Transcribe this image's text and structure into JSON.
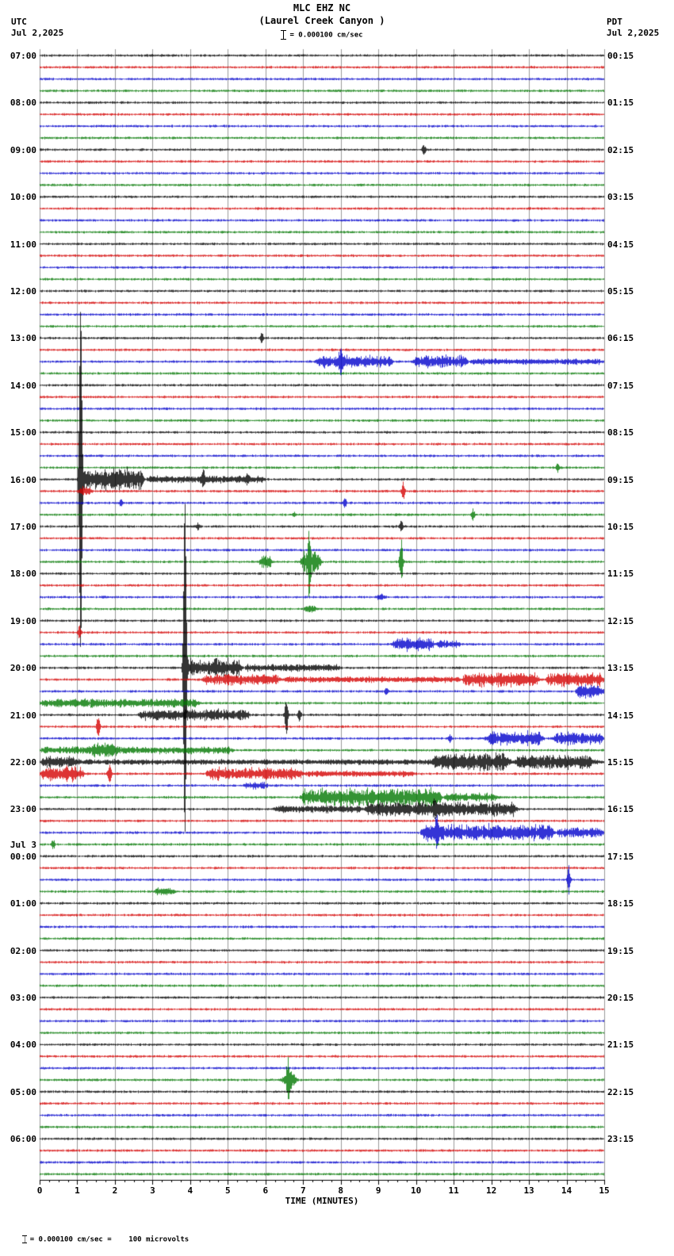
{
  "header": {
    "title": "MLC EHZ NC",
    "subtitle": "(Laurel Creek Canyon )",
    "scale_text": "= 0.000100 cm/sec",
    "left_tz": "UTC",
    "left_date": "Jul 2,2025",
    "right_tz": "PDT",
    "right_date": "Jul 2,2025"
  },
  "footer": {
    "xlabel": "TIME (MINUTES)",
    "note": "= 0.000100 cm/sec =    100 microvolts"
  },
  "chart_data": {
    "type": "line",
    "description": "24-hour helicorder seismogram, 96 traces of 15 minutes each, colors cycling black/red/blue/green",
    "x_range": [
      0,
      15
    ],
    "x_ticks": [
      "0",
      "1",
      "2",
      "3",
      "4",
      "5",
      "6",
      "7",
      "8",
      "9",
      "10",
      "11",
      "12",
      "13",
      "14",
      "15"
    ],
    "rows": 96,
    "row_duration_minutes": 15,
    "row_colors_cycle": [
      "#000000",
      "#d40000",
      "#0000cc",
      "#007700"
    ],
    "grid_color": "#9a9a9a",
    "noise_amp": 1.3,
    "left_labels": [
      {
        "row": 0,
        "text": "07:00"
      },
      {
        "row": 4,
        "text": "08:00"
      },
      {
        "row": 8,
        "text": "09:00"
      },
      {
        "row": 12,
        "text": "10:00"
      },
      {
        "row": 16,
        "text": "11:00"
      },
      {
        "row": 20,
        "text": "12:00"
      },
      {
        "row": 24,
        "text": "13:00"
      },
      {
        "row": 28,
        "text": "14:00"
      },
      {
        "row": 32,
        "text": "15:00"
      },
      {
        "row": 36,
        "text": "16:00"
      },
      {
        "row": 40,
        "text": "17:00"
      },
      {
        "row": 44,
        "text": "18:00"
      },
      {
        "row": 48,
        "text": "19:00"
      },
      {
        "row": 52,
        "text": "20:00"
      },
      {
        "row": 56,
        "text": "21:00"
      },
      {
        "row": 60,
        "text": "22:00"
      },
      {
        "row": 64,
        "text": "23:00"
      },
      {
        "row": 67,
        "text": "Jul 3"
      },
      {
        "row": 68,
        "text": "00:00"
      },
      {
        "row": 72,
        "text": "01:00"
      },
      {
        "row": 76,
        "text": "02:00"
      },
      {
        "row": 80,
        "text": "03:00"
      },
      {
        "row": 84,
        "text": "04:00"
      },
      {
        "row": 88,
        "text": "05:00"
      },
      {
        "row": 92,
        "text": "06:00"
      }
    ],
    "right_labels": [
      {
        "row": 0,
        "text": "00:15"
      },
      {
        "row": 4,
        "text": "01:15"
      },
      {
        "row": 8,
        "text": "02:15"
      },
      {
        "row": 12,
        "text": "03:15"
      },
      {
        "row": 16,
        "text": "04:15"
      },
      {
        "row": 20,
        "text": "05:15"
      },
      {
        "row": 24,
        "text": "06:15"
      },
      {
        "row": 28,
        "text": "07:15"
      },
      {
        "row": 32,
        "text": "08:15"
      },
      {
        "row": 36,
        "text": "09:15"
      },
      {
        "row": 40,
        "text": "10:15"
      },
      {
        "row": 44,
        "text": "11:15"
      },
      {
        "row": 48,
        "text": "12:15"
      },
      {
        "row": 52,
        "text": "13:15"
      },
      {
        "row": 56,
        "text": "14:15"
      },
      {
        "row": 60,
        "text": "15:15"
      },
      {
        "row": 64,
        "text": "16:15"
      },
      {
        "row": 68,
        "text": "17:15"
      },
      {
        "row": 72,
        "text": "18:15"
      },
      {
        "row": 76,
        "text": "19:15"
      },
      {
        "row": 80,
        "text": "20:15"
      },
      {
        "row": 84,
        "text": "21:15"
      },
      {
        "row": 88,
        "text": "22:15"
      },
      {
        "row": 92,
        "text": "23:15"
      }
    ],
    "events": [
      {
        "row": 8,
        "kind": "spike",
        "x": 10.2,
        "amp": 9
      },
      {
        "row": 24,
        "kind": "spike",
        "x": 5.9,
        "amp": 7
      },
      {
        "row": 26,
        "kind": "burst",
        "x0": 7.3,
        "x1": 9.4,
        "amp": 8
      },
      {
        "row": 26,
        "kind": "burst",
        "x0": 9.9,
        "x1": 11.4,
        "amp": 9
      },
      {
        "row": 26,
        "kind": "burst",
        "x0": 11.4,
        "x1": 15,
        "amp": 3
      },
      {
        "row": 26,
        "kind": "spike",
        "x": 8.0,
        "amp": 24
      },
      {
        "row": 35,
        "kind": "spike",
        "x": 13.75,
        "amp": 7
      },
      {
        "row": 36,
        "kind": "spike",
        "x": 1.08,
        "amp": 215
      },
      {
        "row": 36,
        "kind": "burst",
        "x0": 1.0,
        "x1": 2.8,
        "amp": 15
      },
      {
        "row": 36,
        "kind": "burst",
        "x0": 2.8,
        "x1": 6.0,
        "amp": 4
      },
      {
        "row": 36,
        "kind": "spike",
        "x": 4.35,
        "amp": 11
      },
      {
        "row": 36,
        "kind": "spike",
        "x": 5.5,
        "amp": 6
      },
      {
        "row": 37,
        "kind": "burst",
        "x0": 1.0,
        "x1": 1.4,
        "amp": 6
      },
      {
        "row": 37,
        "kind": "spike",
        "x": 9.65,
        "amp": 13
      },
      {
        "row": 38,
        "kind": "spike",
        "x": 2.15,
        "amp": 5
      },
      {
        "row": 38,
        "kind": "spike",
        "x": 8.1,
        "amp": 8
      },
      {
        "row": 39,
        "kind": "spike",
        "x": 6.75,
        "amp": 5
      },
      {
        "row": 39,
        "kind": "spike",
        "x": 11.5,
        "amp": 8
      },
      {
        "row": 40,
        "kind": "spike",
        "x": 4.2,
        "amp": 5
      },
      {
        "row": 40,
        "kind": "spike",
        "x": 9.6,
        "amp": 10
      },
      {
        "row": 43,
        "kind": "burst",
        "x0": 5.8,
        "x1": 6.2,
        "amp": 10
      },
      {
        "row": 43,
        "kind": "spike",
        "x": 7.15,
        "amp": 44
      },
      {
        "row": 43,
        "kind": "burst",
        "x0": 6.9,
        "x1": 7.5,
        "amp": 16
      },
      {
        "row": 43,
        "kind": "spike",
        "x": 9.6,
        "amp": 38
      },
      {
        "row": 46,
        "kind": "burst",
        "x0": 8.9,
        "x1": 9.2,
        "amp": 5
      },
      {
        "row": 47,
        "kind": "burst",
        "x0": 7.0,
        "x1": 7.35,
        "amp": 8
      },
      {
        "row": 49,
        "kind": "spike",
        "x": 1.05,
        "amp": 10
      },
      {
        "row": 50,
        "kind": "burst",
        "x0": 9.35,
        "x1": 10.5,
        "amp": 9
      },
      {
        "row": 50,
        "kind": "burst",
        "x0": 10.5,
        "x1": 11.2,
        "amp": 5
      },
      {
        "row": 52,
        "kind": "spike",
        "x": 3.85,
        "amp": 210
      },
      {
        "row": 52,
        "kind": "burst",
        "x0": 3.8,
        "x1": 5.4,
        "amp": 13
      },
      {
        "row": 52,
        "kind": "burst",
        "x0": 5.4,
        "x1": 8.0,
        "amp": 4
      },
      {
        "row": 53,
        "kind": "burst",
        "x0": 4.3,
        "x1": 6.4,
        "amp": 7
      },
      {
        "row": 53,
        "kind": "burst",
        "x0": 6.4,
        "x1": 11.2,
        "amp": 3
      },
      {
        "row": 53,
        "kind": "burst",
        "x0": 11.2,
        "x1": 13.3,
        "amp": 9
      },
      {
        "row": 53,
        "kind": "burst",
        "x0": 13.4,
        "x1": 15,
        "amp": 9
      },
      {
        "row": 54,
        "kind": "spike",
        "x": 9.2,
        "amp": 5
      },
      {
        "row": 54,
        "kind": "burst",
        "x0": 14.2,
        "x1": 15,
        "amp": 9
      },
      {
        "row": 55,
        "kind": "burst",
        "x0": 0,
        "x1": 4.3,
        "amp": 5
      },
      {
        "row": 56,
        "kind": "burst",
        "x0": 2.6,
        "x1": 5.6,
        "amp": 7
      },
      {
        "row": 56,
        "kind": "spike",
        "x": 6.55,
        "amp": 26
      },
      {
        "row": 56,
        "kind": "spike",
        "x": 6.9,
        "amp": 9
      },
      {
        "row": 57,
        "kind": "spike",
        "x": 1.55,
        "amp": 17
      },
      {
        "row": 58,
        "kind": "spike",
        "x": 10.9,
        "amp": 6
      },
      {
        "row": 58,
        "kind": "burst",
        "x0": 11.8,
        "x1": 13.4,
        "amp": 9
      },
      {
        "row": 58,
        "kind": "burst",
        "x0": 13.6,
        "x1": 15,
        "amp": 8
      },
      {
        "row": 59,
        "kind": "burst",
        "x0": 0,
        "x1": 5.2,
        "amp": 4
      },
      {
        "row": 59,
        "kind": "burst",
        "x0": 1.3,
        "x1": 2.1,
        "amp": 6
      },
      {
        "row": 60,
        "kind": "burst",
        "x0": 0,
        "x1": 15,
        "amp": 2.5
      },
      {
        "row": 60,
        "kind": "burst",
        "x0": 0,
        "x1": 1.0,
        "amp": 5
      },
      {
        "row": 60,
        "kind": "burst",
        "x0": 10.4,
        "x1": 12.5,
        "amp": 10
      },
      {
        "row": 60,
        "kind": "burst",
        "x0": 12.6,
        "x1": 14.7,
        "amp": 7
      },
      {
        "row": 61,
        "kind": "burst",
        "x0": 0,
        "x1": 1.2,
        "amp": 10
      },
      {
        "row": 61,
        "kind": "spike",
        "x": 1.85,
        "amp": 18
      },
      {
        "row": 61,
        "kind": "burst",
        "x0": 4.4,
        "x1": 7.0,
        "amp": 8
      },
      {
        "row": 61,
        "kind": "burst",
        "x0": 7.0,
        "x1": 10.0,
        "amp": 3
      },
      {
        "row": 62,
        "kind": "burst",
        "x0": 5.4,
        "x1": 6.1,
        "amp": 4
      },
      {
        "row": 63,
        "kind": "burst",
        "x0": 6.9,
        "x1": 10.7,
        "amp": 12
      },
      {
        "row": 63,
        "kind": "burst",
        "x0": 10.7,
        "x1": 12.2,
        "amp": 5
      },
      {
        "row": 64,
        "kind": "burst",
        "x0": 6.2,
        "x1": 8.6,
        "amp": 4
      },
      {
        "row": 64,
        "kind": "burst",
        "x0": 8.6,
        "x1": 12.7,
        "amp": 9
      },
      {
        "row": 64,
        "kind": "spike",
        "x": 10.5,
        "amp": 15
      },
      {
        "row": 66,
        "kind": "burst",
        "x0": 10.1,
        "x1": 13.7,
        "amp": 11
      },
      {
        "row": 66,
        "kind": "burst",
        "x0": 13.7,
        "x1": 15,
        "amp": 6
      },
      {
        "row": 66,
        "kind": "spike",
        "x": 10.55,
        "amp": 17
      },
      {
        "row": 67,
        "kind": "spike",
        "x": 0.35,
        "amp": 7
      },
      {
        "row": 70,
        "kind": "spike",
        "x": 14.05,
        "amp": 20
      },
      {
        "row": 71,
        "kind": "burst",
        "x0": 3.0,
        "x1": 3.6,
        "amp": 5
      },
      {
        "row": 87,
        "kind": "spike",
        "x": 6.6,
        "amp": 28
      },
      {
        "row": 87,
        "kind": "burst",
        "x0": 6.4,
        "x1": 6.85,
        "amp": 12
      }
    ]
  }
}
